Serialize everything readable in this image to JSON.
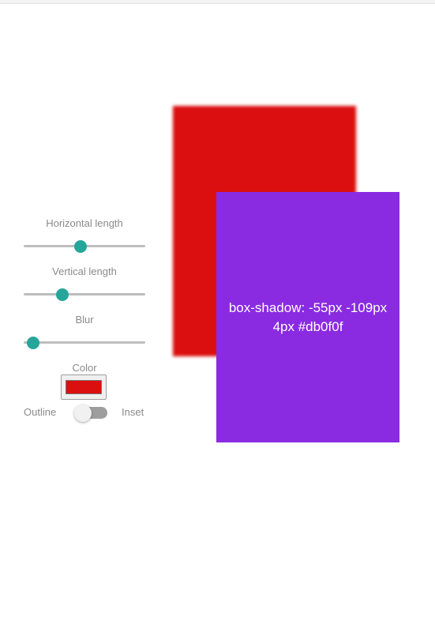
{
  "controls": {
    "horizontal_label": "Horizontal length",
    "horizontal_value": 0.47,
    "vertical_label": "Vertical length",
    "vertical_value": 0.32,
    "blur_label": "Blur",
    "blur_value": 0.08,
    "color_label": "Color",
    "color_value": "#db0f0f",
    "outline_label": "Outline",
    "inset_label": "Inset",
    "inset_enabled": false
  },
  "preview": {
    "box_color": "#8a2be2",
    "shadow_color": "#db0f0f",
    "shadow_offset_x": -55,
    "shadow_offset_y": -109,
    "shadow_blur": 4,
    "text": "box-shadow: -55px -109px 4px #db0f0f"
  },
  "colors": {
    "accent": "#26a69a",
    "track": "#bdbdbd",
    "label_text": "#8a8a8a"
  }
}
